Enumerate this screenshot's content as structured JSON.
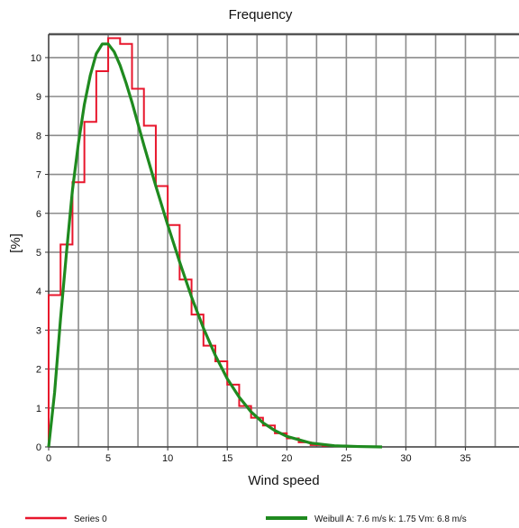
{
  "chart_data": {
    "type": "line",
    "title": "Frequency",
    "xlabel": "Wind speed",
    "ylabel": "[%]",
    "xlim": [
      0,
      39.5
    ],
    "ylim": [
      0,
      10.6
    ],
    "xticks": [
      0,
      5,
      10,
      15,
      20,
      25,
      30,
      35
    ],
    "yticks": [
      0,
      1,
      2,
      3,
      4,
      5,
      6,
      7,
      8,
      9,
      10
    ],
    "grid": true,
    "legend_position": "bottom",
    "series": [
      {
        "name": "Series 0",
        "style": "step",
        "color": "#e8162c",
        "bin_width": 1,
        "x": [
          0,
          1,
          2,
          3,
          4,
          5,
          6,
          7,
          8,
          9,
          10,
          11,
          12,
          13,
          14,
          15,
          16,
          17,
          18,
          19,
          20,
          21,
          22,
          23,
          24,
          25
        ],
        "values": [
          3.9,
          5.2,
          6.8,
          8.35,
          9.65,
          10.5,
          10.35,
          9.2,
          8.25,
          6.7,
          5.7,
          4.3,
          3.4,
          2.6,
          2.2,
          1.6,
          1.05,
          0.75,
          0.55,
          0.35,
          0.22,
          0.12,
          0.05,
          0.03,
          0.02,
          0.01
        ]
      },
      {
        "name": "Weibull A: 7.6 m/s k: 1.75 Vm: 6.8 m/s",
        "style": "line",
        "color": "#1f8a1f",
        "x": [
          0,
          0.5,
          1,
          1.5,
          2,
          2.5,
          3,
          3.5,
          4,
          4.5,
          5,
          5.5,
          6,
          6.5,
          7,
          8,
          9,
          10,
          11,
          12,
          13,
          14,
          15,
          16,
          17,
          18,
          19,
          20,
          22,
          24,
          26,
          28
        ],
        "values": [
          0,
          1.4,
          3.3,
          5.0,
          6.6,
          7.8,
          8.8,
          9.55,
          10.1,
          10.35,
          10.35,
          10.15,
          9.8,
          9.35,
          8.85,
          7.75,
          6.7,
          5.7,
          4.75,
          3.85,
          3.05,
          2.35,
          1.75,
          1.28,
          0.9,
          0.62,
          0.42,
          0.27,
          0.1,
          0.03,
          0.01,
          0.0
        ]
      }
    ]
  }
}
